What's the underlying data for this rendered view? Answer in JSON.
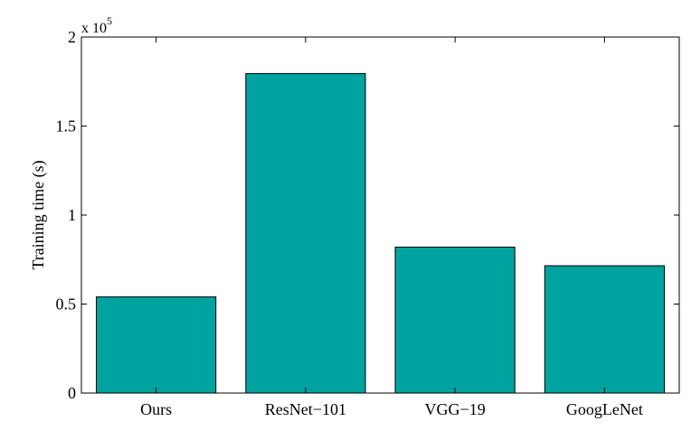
{
  "chart_data": {
    "type": "bar",
    "categories": [
      "Ours",
      "ResNet−101",
      "VGG−19",
      "GoogLeNet"
    ],
    "values": [
      54000,
      179500,
      82000,
      71500
    ],
    "ylabel": "Training time (s)",
    "xlabel": "",
    "title": "",
    "ylim": [
      0,
      200000
    ],
    "yticks": [
      0,
      50000,
      100000,
      150000,
      200000
    ],
    "ytick_labels": [
      "0",
      "0.5",
      "1",
      "1.5",
      "2"
    ],
    "y_multiplier_base": "x 10",
    "y_multiplier_exponent": "5",
    "bar_color": "#00a3a0",
    "grid": false,
    "legend": "none"
  }
}
